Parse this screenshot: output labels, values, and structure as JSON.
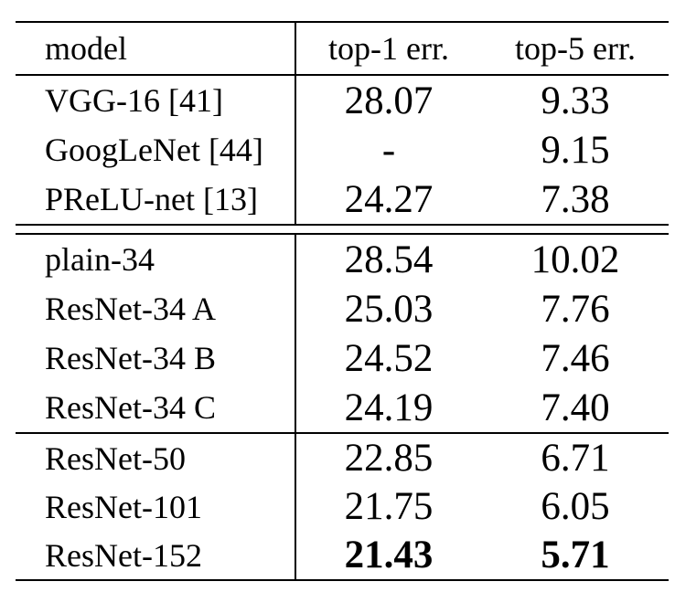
{
  "colors": {
    "text": "#000000",
    "background": "#ffffff",
    "rule": "#000000"
  },
  "table": {
    "header": {
      "model": "model",
      "top1": "top-1 err.",
      "top5": "top-5 err."
    },
    "groups": [
      {
        "rows": [
          {
            "model": "VGG-16 [41]",
            "top1": "28.07",
            "top5": "9.33"
          },
          {
            "model": "GoogLeNet [44]",
            "top1": "-",
            "top5": "9.15"
          },
          {
            "model": "PReLU-net [13]",
            "top1": "24.27",
            "top5": "7.38"
          }
        ]
      },
      {
        "rows": [
          {
            "model": "plain-34",
            "top1": "28.54",
            "top5": "10.02"
          },
          {
            "model": "ResNet-34 A",
            "top1": "25.03",
            "top5": "7.76"
          },
          {
            "model": "ResNet-34 B",
            "top1": "24.52",
            "top5": "7.46"
          },
          {
            "model": "ResNet-34 C",
            "top1": "24.19",
            "top5": "7.40"
          }
        ]
      },
      {
        "rows": [
          {
            "model": "ResNet-50",
            "top1": "22.85",
            "top5": "6.71"
          },
          {
            "model": "ResNet-101",
            "top1": "21.75",
            "top5": "6.05"
          },
          {
            "model": "ResNet-152",
            "top1": "21.43",
            "top5": "5.71"
          }
        ]
      }
    ]
  }
}
